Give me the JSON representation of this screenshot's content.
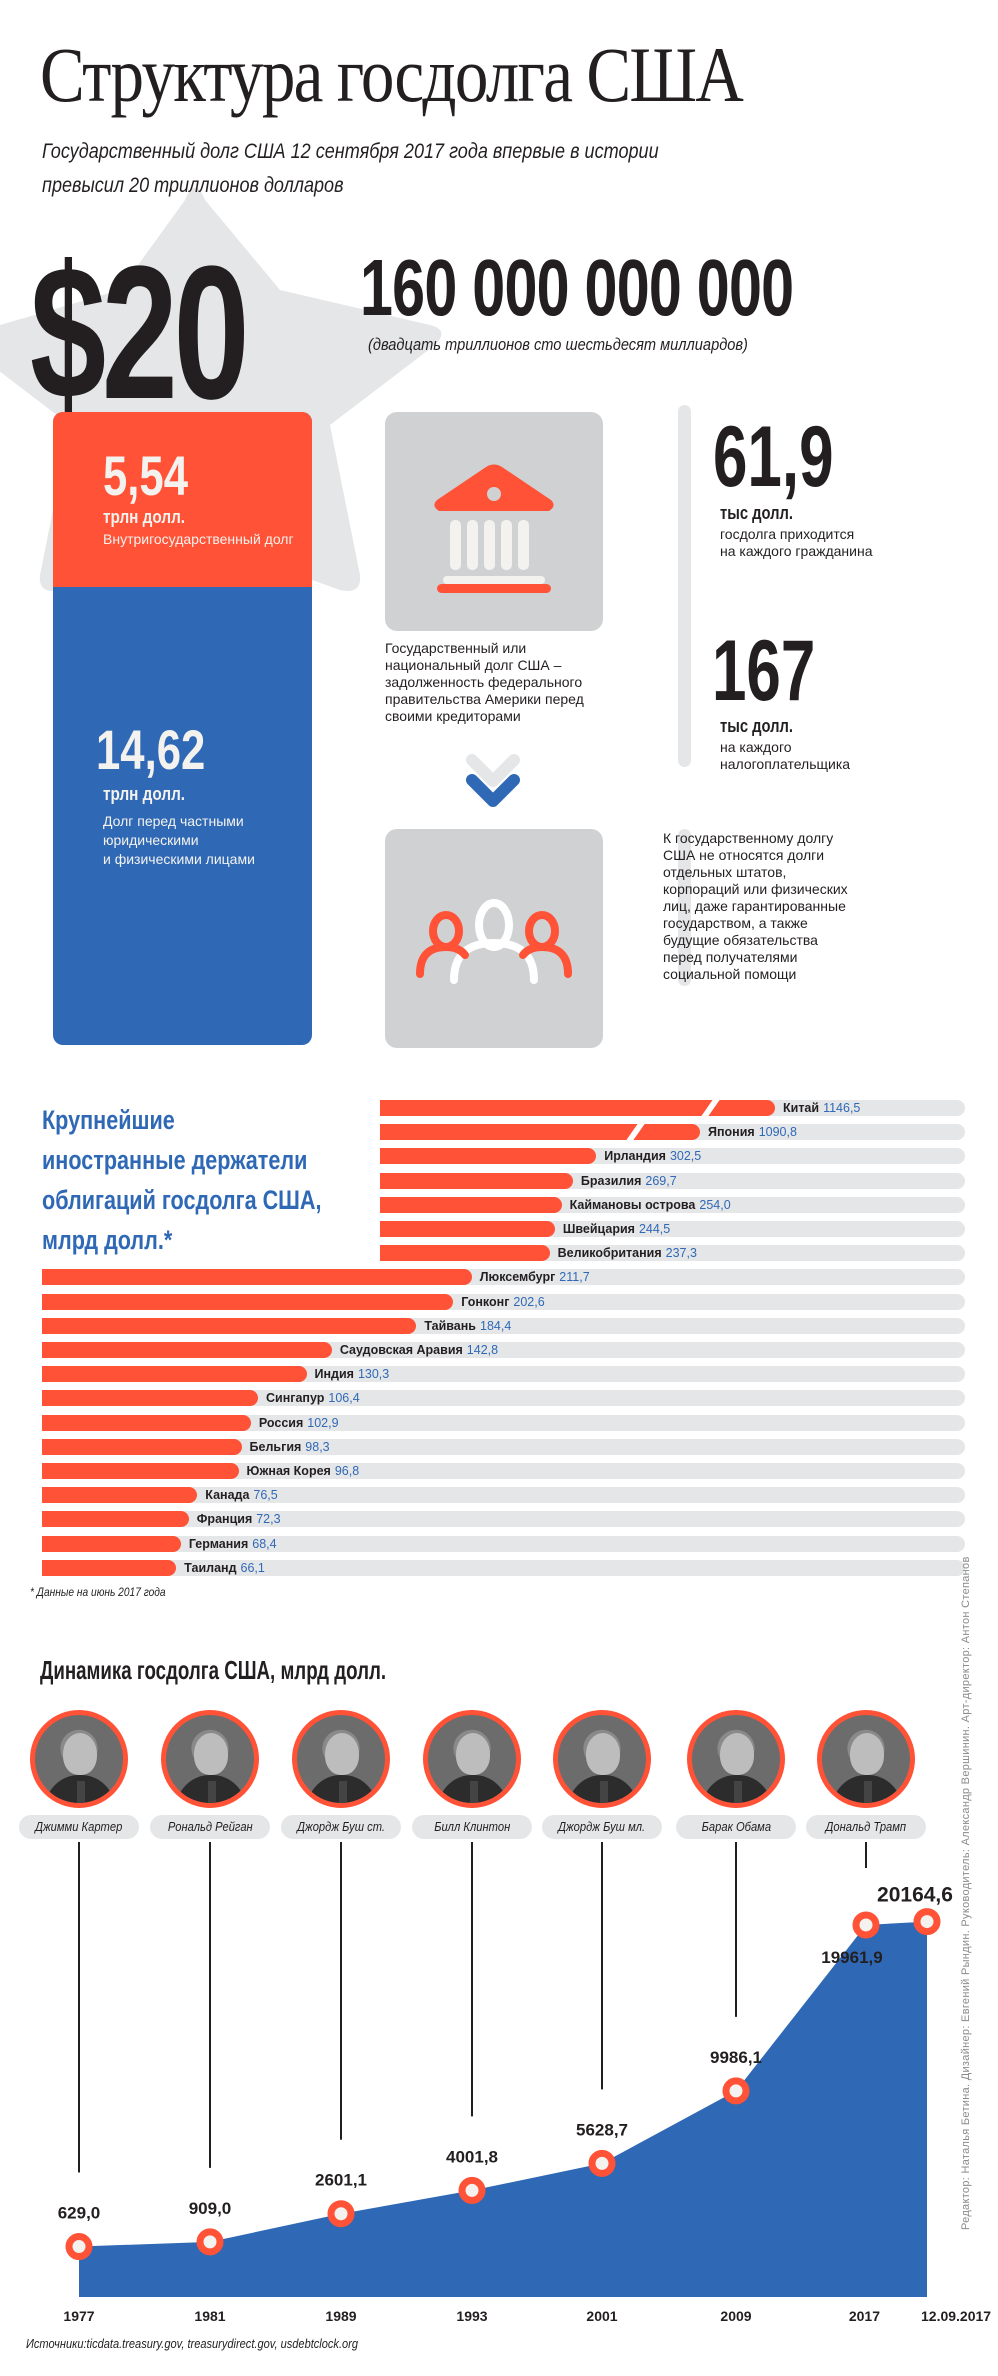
{
  "header": {
    "title": "Структура госдолга США",
    "subtitle_line1": "Государственный долг США 12 сентября 2017 года впервые в истории",
    "subtitle_line2": "превысил 20 триллионов долларов"
  },
  "total": {
    "prefix": "$20",
    "suffix": "160 000 000 000",
    "in_words": "(двадцать триллионов сто шестьдесят миллиардов)"
  },
  "structure": {
    "intragovernmental": {
      "value": "5,54",
      "unit": "трлн долл.",
      "desc": "Внутригосударственный долг",
      "color": "#ff5236"
    },
    "public": {
      "value": "14,62",
      "unit": "трлн долл.",
      "desc_line1": "Долг перед частными",
      "desc_line2": "юридическими",
      "desc_line3": "и физическими лицами",
      "color": "#2f69b6"
    }
  },
  "definition": {
    "icon_top": "government-building-icon",
    "icon_arrow": "chevron-down-icon",
    "icon_bottom": "people-group-icon",
    "text": "Государственный или национальный долг США – задолженность федерального правительства Америки перед своими кредиторами"
  },
  "stats": [
    {
      "value": "61,9",
      "unit": "тыс долл.",
      "desc_line1": "госдолга приходится",
      "desc_line2": "на каждого гражданина"
    },
    {
      "value": "167",
      "unit": "тыс долл.",
      "desc_line1": "на каждого",
      "desc_line2": "налогоплательщика"
    }
  ],
  "note": "К государственному долгу США не относятся долги отдельных штатов, корпораций или физических лиц, даже гарантированные государством, а также будущие обязательства перед получателями социальной помощи",
  "holders": {
    "title_line1": "Крупнейшие",
    "title_line2": "иностранные держатели",
    "title_line3": "облигаций госдолга США,",
    "title_line4": "млрд долл.*",
    "footnote": "* Данные на июнь 2017 года"
  },
  "chart_data": [
    {
      "type": "bar",
      "title": "Крупнейшие иностранные держатели облигаций госдолга США, млрд долл.*",
      "orientation": "horizontal",
      "categories": [
        "Китай",
        "Япония",
        "Ирландия",
        "Бразилия",
        "Каймановы острова",
        "Швейцария",
        "Великобритания",
        "Люксембург",
        "Гонконг",
        "Тайвань",
        "Саудовская Аравия",
        "Индия",
        "Сингапур",
        "Россия",
        "Бельгия",
        "Южная Корея",
        "Канада",
        "Франция",
        "Германия",
        "Таиланд"
      ],
      "values": [
        1146.5,
        1090.8,
        302.5,
        269.7,
        254.0,
        244.5,
        237.3,
        211.7,
        202.6,
        184.4,
        142.8,
        130.3,
        106.4,
        102.9,
        98.3,
        96.8,
        76.5,
        72.3,
        68.4,
        66.1
      ],
      "value_labels": [
        "1146,5",
        "1090,8",
        "302,5",
        "269,7",
        "254,0",
        "244,5",
        "237,3",
        "211,7",
        "202,6",
        "184,4",
        "142,8",
        "130,3",
        "106,4",
        "102,9",
        "98,3",
        "96,8",
        "76,5",
        "72,3",
        "68,4",
        "66,1"
      ],
      "broken_axis_bars": [
        "Китай",
        "Япония"
      ],
      "unit": "млрд долл.",
      "note": "* Данные на июнь 2017 года"
    },
    {
      "type": "area",
      "title": "Динамика госдолга США, млрд долл.",
      "x": [
        "1977",
        "1981",
        "1989",
        "1993",
        "2001",
        "2009",
        "2017",
        "12.09.2017"
      ],
      "values": [
        629.0,
        909.0,
        2601.1,
        4001.8,
        5628.7,
        9986.1,
        19961.9,
        20164.6
      ],
      "value_labels": [
        "629,0",
        "909,0",
        "2601,1",
        "4001,8",
        "5628,7",
        "9986,1",
        "19961,9",
        "20164,6"
      ],
      "presidents": [
        "Джимми Картер",
        "Рональд Рейган",
        "Джордж Буш ст.",
        "Билл Клинтон",
        "Джордж Буш мл.",
        "Барак Обама",
        "Дональд Трамп"
      ],
      "ylim": [
        0,
        20500
      ]
    }
  ],
  "dynamics": {
    "title": "Динамика госдолга США, млрд долл."
  },
  "credits": "Редактор: Наталья Бетина. Дизайнер: Евгений Рындин. Руководитель: Александр Вершинин. Арт-директор: Антон Степанов",
  "sources": "Источники:ticdata.treasury.gov, treasurydirect.gov, usdebtclock.org",
  "colors": {
    "accent_red": "#ff5236",
    "accent_blue": "#2f69b6",
    "light_gray": "#e5e6e8",
    "icon_box_gray": "#d0d1d3",
    "text_dark": "#231f20"
  }
}
